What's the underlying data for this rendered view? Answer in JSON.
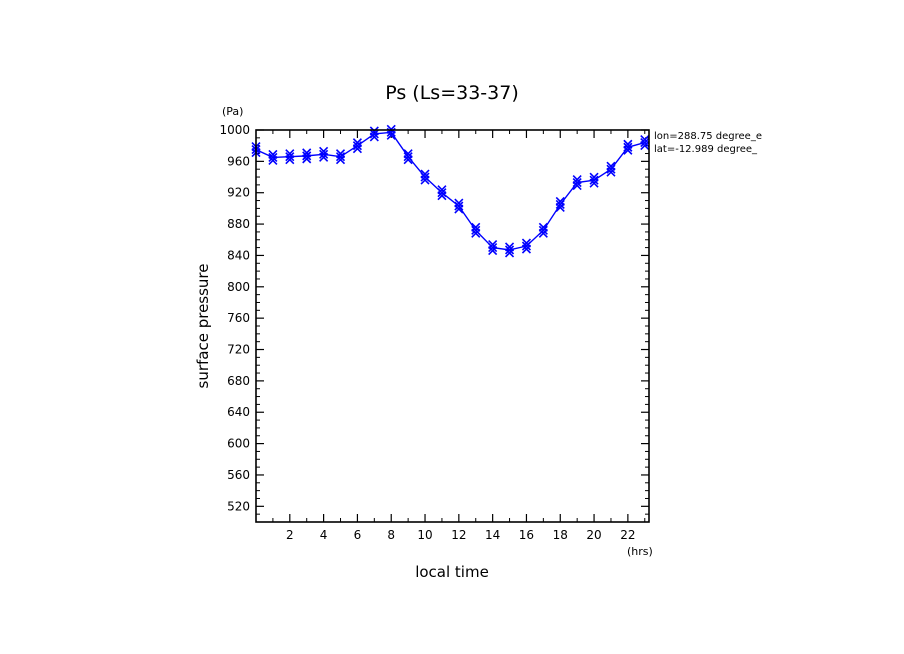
{
  "chart_data": {
    "type": "line",
    "title": "Ps (Ls=33-37)",
    "xlabel": "local time",
    "ylabel": "surface pressure",
    "x_unit": "(hrs)",
    "y_unit": "(Pa)",
    "xlim": [
      0,
      23.25
    ],
    "ylim": [
      500,
      1000
    ],
    "x_ticks": [
      2,
      4,
      6,
      8,
      10,
      12,
      14,
      16,
      18,
      20,
      22
    ],
    "x_tick_labels": [
      "2",
      "4",
      "6",
      "8",
      "10",
      "12",
      "14",
      "16",
      "18",
      "20",
      "22"
    ],
    "y_ticks": [
      520,
      560,
      600,
      640,
      680,
      720,
      760,
      800,
      840,
      880,
      920,
      960,
      1000
    ],
    "y_tick_labels": [
      "520",
      "560",
      "600",
      "640",
      "680",
      "720",
      "760",
      "800",
      "840",
      "880",
      "920",
      "960",
      "1000"
    ],
    "annotations": [
      "lon=288.75 degree_e",
      "lat=-12.989 degree_"
    ],
    "grid": false,
    "line_color": "#0000ff",
    "series": [
      {
        "x": [
          0,
          1,
          2,
          3,
          4,
          5,
          6,
          7,
          8,
          9,
          10,
          11,
          12,
          13,
          14,
          15,
          16,
          17,
          18,
          19,
          20,
          21,
          22,
          23
        ],
        "y": [
          975,
          965,
          966,
          967,
          969,
          966,
          980,
          995,
          997,
          966,
          940,
          920,
          903,
          872,
          850,
          847,
          852,
          872,
          905,
          933,
          936,
          950,
          978,
          984
        ]
      }
    ]
  }
}
